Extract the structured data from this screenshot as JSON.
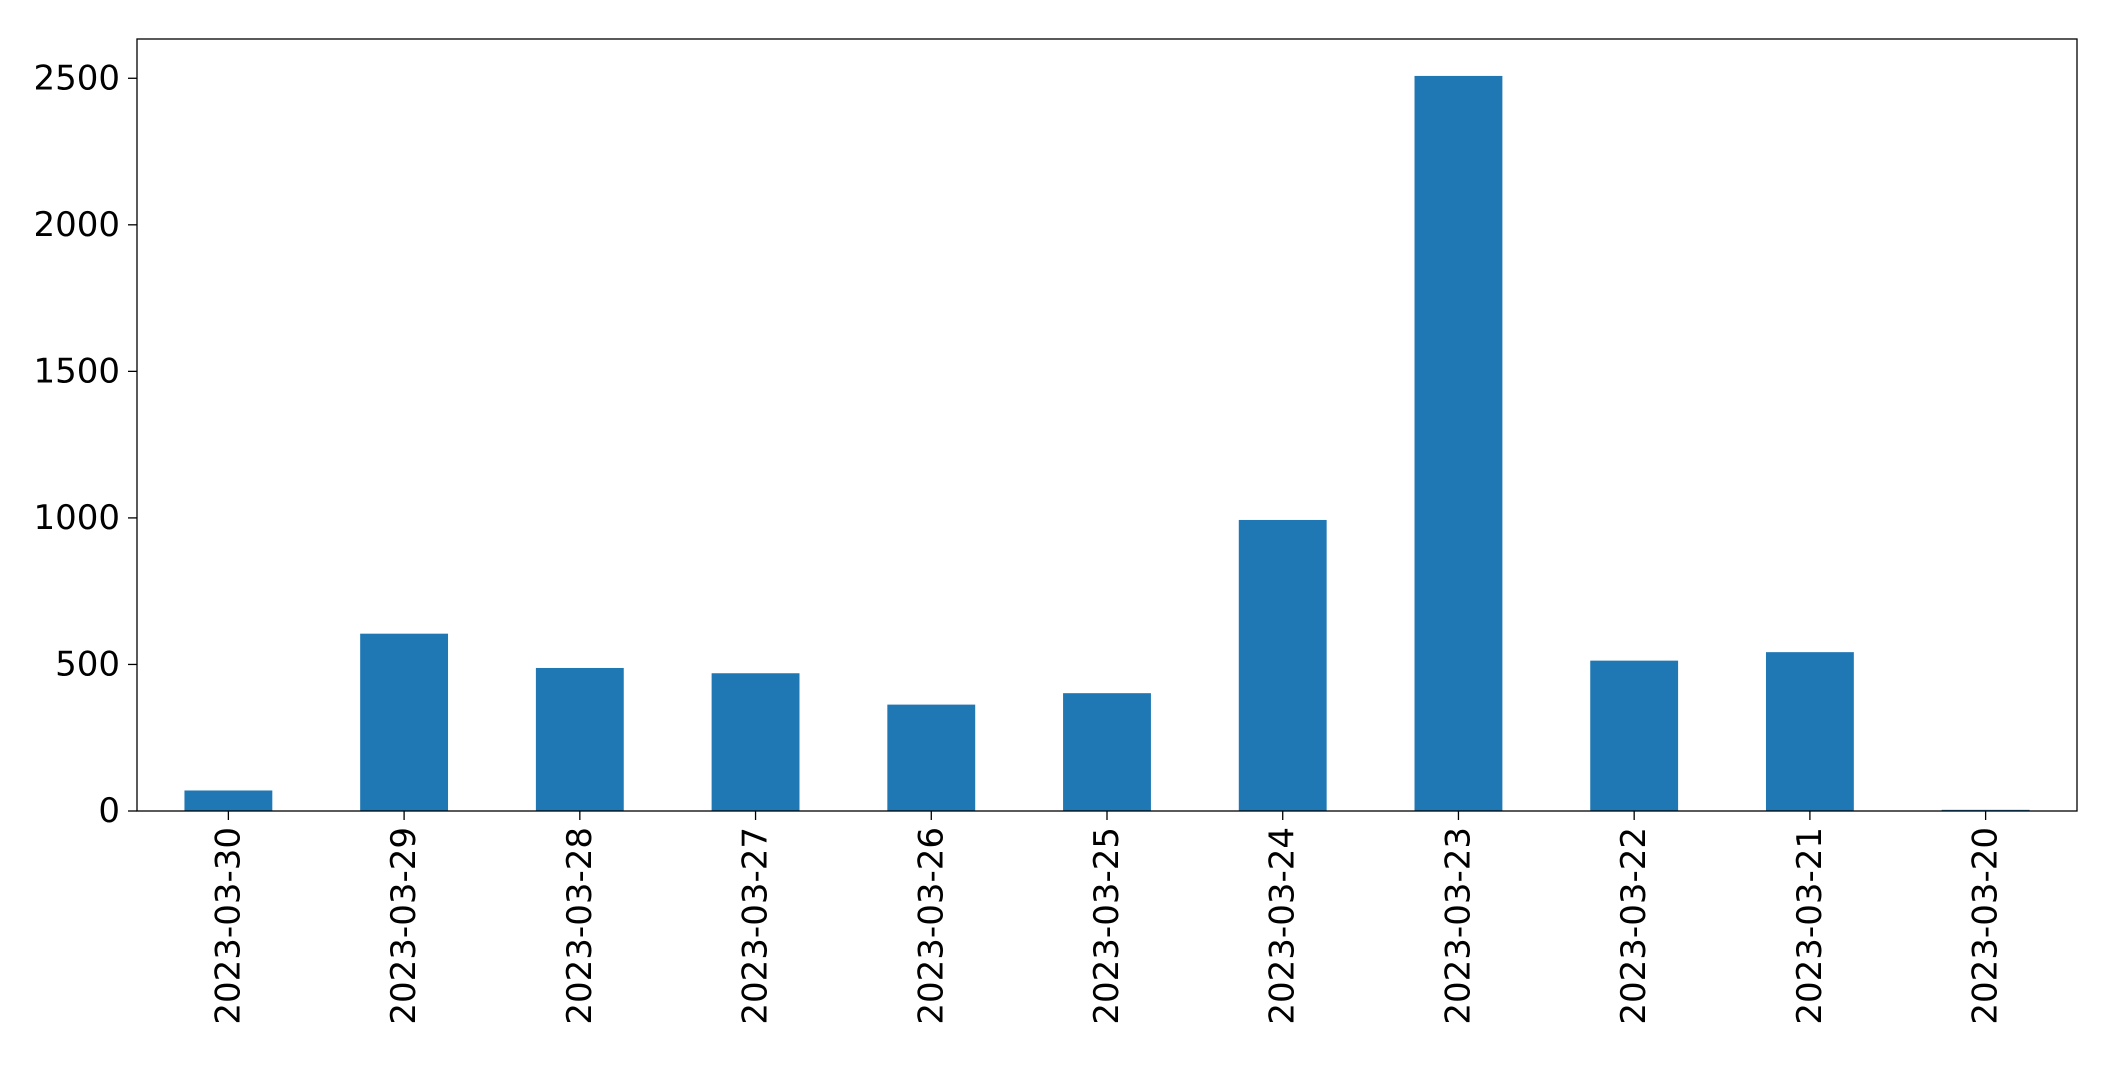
{
  "chart_data": {
    "type": "bar",
    "title": "",
    "xlabel": "",
    "ylabel": "",
    "categories": [
      "2023-03-30",
      "2023-03-29",
      "2023-03-28",
      "2023-03-27",
      "2023-03-26",
      "2023-03-25",
      "2023-03-24",
      "2023-03-23",
      "2023-03-22",
      "2023-03-21",
      "2023-03-20"
    ],
    "values": [
      70,
      605,
      488,
      470,
      363,
      402,
      993,
      2508,
      513,
      542,
      4
    ],
    "ylim": [
      0,
      2634
    ],
    "yticks": [
      0,
      500,
      1000,
      1500,
      2000,
      2500
    ],
    "grid": false,
    "legend": "none",
    "bar_color": "#1f77b4"
  }
}
